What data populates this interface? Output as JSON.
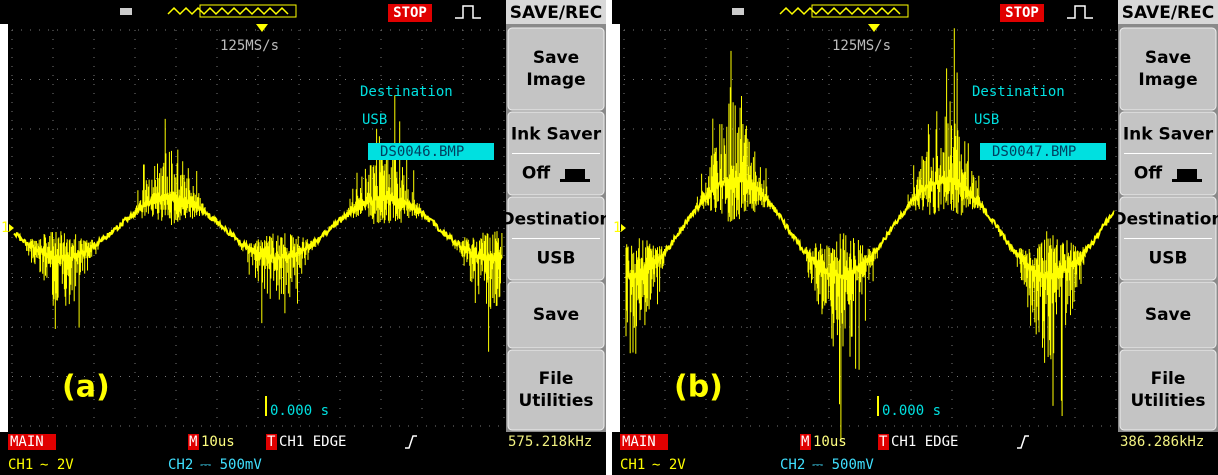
{
  "panels": [
    {
      "label": "(a)",
      "status": "STOP",
      "menu_title": "SAVE/REC",
      "sample_rate": "125MS/s",
      "destination_title": "Destination",
      "destination_value": "USB",
      "filename": "DS0046.BMP",
      "trigger_time": "0.000 s",
      "channel_marker": "1",
      "menu": [
        {
          "lines": [
            "Save",
            "Image"
          ]
        },
        {
          "lines": [
            "Ink Saver"
          ],
          "value": "Off"
        },
        {
          "lines": [
            "Destination"
          ],
          "value": "USB"
        },
        {
          "lines": [
            "Save"
          ]
        },
        {
          "lines": [
            "File",
            "Utilities"
          ]
        }
      ],
      "bottom": {
        "mode": "MAIN",
        "timebase_icon": "M",
        "timebase": "10us",
        "trigger_icon": "T",
        "trigger": "CH1  EDGE",
        "frequency": "575.218kHz",
        "ch1": "CH1",
        "ch1_scale": "∼ 2V",
        "ch2": "CH2",
        "ch2_scale": "⎓ 500mV"
      }
    },
    {
      "label": "(b)",
      "status": "STOP",
      "menu_title": "SAVE/REC",
      "sample_rate": "125MS/s",
      "destination_title": "Destination",
      "destination_value": "USB",
      "filename": "DS0047.BMP",
      "trigger_time": "0.000 s",
      "channel_marker": "1",
      "menu": [
        {
          "lines": [
            "Save",
            "Image"
          ]
        },
        {
          "lines": [
            "Ink Saver"
          ],
          "value": "Off"
        },
        {
          "lines": [
            "Destination"
          ],
          "value": "USB"
        },
        {
          "lines": [
            "Save"
          ]
        },
        {
          "lines": [
            "File",
            "Utilities"
          ]
        }
      ],
      "bottom": {
        "mode": "MAIN",
        "timebase_icon": "M",
        "timebase": "10us",
        "trigger_icon": "T",
        "trigger": "CH1  EDGE",
        "frequency": "386.286kHz",
        "ch1": "CH1",
        "ch1_scale": "∼ 2V",
        "ch2": "CH2",
        "ch2_scale": "⎓ 500mV"
      }
    }
  ]
}
